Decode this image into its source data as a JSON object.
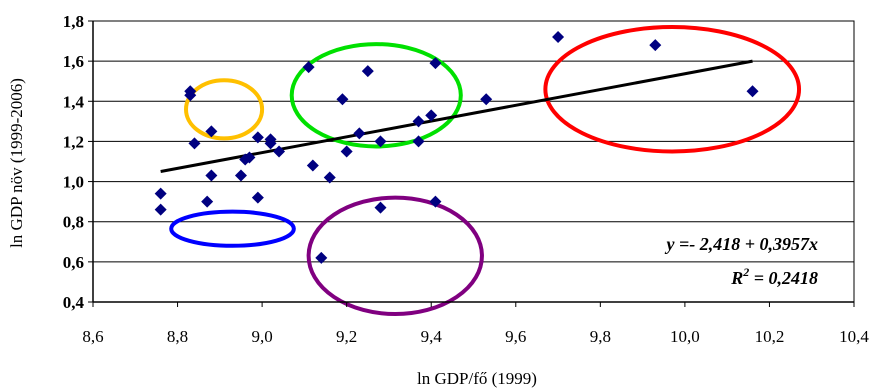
{
  "chart_data": {
    "type": "scatter",
    "xlabel": "ln GDP/fő (1999)",
    "ylabel": "ln GDP növ (1999-2006)",
    "xlim": [
      8.6,
      10.4
    ],
    "ylim": [
      0.4,
      1.8
    ],
    "x_ticks": [
      "8,6",
      "8,8",
      "9,0",
      "9,2",
      "9,4",
      "9,6",
      "9,8",
      "10,0",
      "10,2",
      "10,4"
    ],
    "y_ticks": [
      "0,4",
      "0,6",
      "0,8",
      "1,0",
      "1,2",
      "1,4",
      "1,6",
      "1,8"
    ],
    "x_tick_values": [
      8.6,
      8.8,
      9.0,
      9.2,
      9.4,
      9.6,
      9.8,
      10.0,
      10.2,
      10.4
    ],
    "y_tick_values": [
      0.4,
      0.6,
      0.8,
      1.0,
      1.2,
      1.4,
      1.6,
      1.8
    ],
    "grid": "horizontal",
    "marker_color": "#000080",
    "points": [
      {
        "x": 8.76,
        "y": 0.94
      },
      {
        "x": 8.76,
        "y": 0.86
      },
      {
        "x": 8.83,
        "y": 1.45
      },
      {
        "x": 8.83,
        "y": 1.43
      },
      {
        "x": 8.84,
        "y": 1.19
      },
      {
        "x": 8.87,
        "y": 0.9
      },
      {
        "x": 8.88,
        "y": 1.03
      },
      {
        "x": 8.88,
        "y": 1.25
      },
      {
        "x": 8.95,
        "y": 1.03
      },
      {
        "x": 8.96,
        "y": 1.11
      },
      {
        "x": 8.97,
        "y": 1.12
      },
      {
        "x": 8.99,
        "y": 0.92
      },
      {
        "x": 8.99,
        "y": 1.22
      },
      {
        "x": 9.02,
        "y": 1.19
      },
      {
        "x": 9.02,
        "y": 1.21
      },
      {
        "x": 9.04,
        "y": 1.15
      },
      {
        "x": 9.11,
        "y": 1.57
      },
      {
        "x": 9.12,
        "y": 1.08
      },
      {
        "x": 9.14,
        "y": 0.62
      },
      {
        "x": 9.16,
        "y": 1.02
      },
      {
        "x": 9.19,
        "y": 1.41
      },
      {
        "x": 9.2,
        "y": 1.15
      },
      {
        "x": 9.23,
        "y": 1.24
      },
      {
        "x": 9.25,
        "y": 1.55
      },
      {
        "x": 9.28,
        "y": 1.2
      },
      {
        "x": 9.28,
        "y": 0.87
      },
      {
        "x": 9.37,
        "y": 1.2
      },
      {
        "x": 9.37,
        "y": 1.3
      },
      {
        "x": 9.4,
        "y": 1.33
      },
      {
        "x": 9.41,
        "y": 0.9
      },
      {
        "x": 9.41,
        "y": 1.59
      },
      {
        "x": 9.53,
        "y": 1.41
      },
      {
        "x": 9.7,
        "y": 1.72
      },
      {
        "x": 9.93,
        "y": 1.68
      },
      {
        "x": 10.16,
        "y": 1.45
      }
    ],
    "trendline": {
      "x": [
        8.76,
        10.16
      ],
      "y": [
        1.05,
        1.6
      ],
      "color": "#000000"
    },
    "equation": "y =- 2,418 + 0,3957x",
    "r2_label": "R",
    "r2_exp": "2",
    "r2_value": " = 0,2418",
    "ellipses": [
      {
        "name": "orange-group",
        "color": "#FFC000",
        "cx": 8.91,
        "cy": 1.36,
        "rx": 0.09,
        "ry": 0.145
      },
      {
        "name": "green-group",
        "color": "#00E000",
        "cx": 9.27,
        "cy": 1.43,
        "rx": 0.2,
        "ry": 0.255
      },
      {
        "name": "blue-group",
        "color": "#0000FF",
        "cx": 8.93,
        "cy": 0.765,
        "rx": 0.145,
        "ry": 0.085
      },
      {
        "name": "purple-group",
        "color": "#800080",
        "cx": 9.315,
        "cy": 0.63,
        "rx": 0.205,
        "ry": 0.29
      },
      {
        "name": "red-group",
        "color": "#FF0000",
        "cx": 9.97,
        "cy": 1.46,
        "rx": 0.3,
        "ry": 0.31
      }
    ]
  }
}
